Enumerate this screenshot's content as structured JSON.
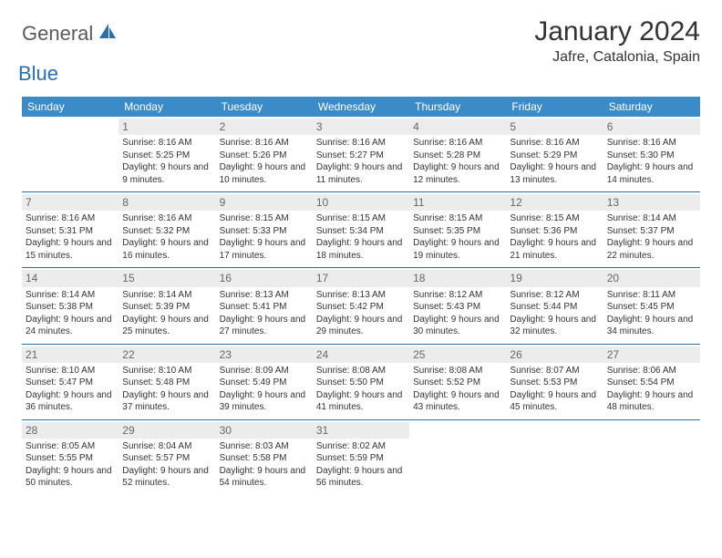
{
  "logo": {
    "general": "General",
    "blue": "Blue"
  },
  "title": "January 2024",
  "subtitle": "Jafre, Catalonia, Spain",
  "colors": {
    "header_bg": "#3b8bc9",
    "header_text": "#ffffff",
    "row_border": "#2b6fb0",
    "daynum_bg": "#ececec",
    "daynum_text": "#666666",
    "body_text": "#333333",
    "logo_gray": "#5a5a5a",
    "logo_blue": "#2b6fb0"
  },
  "day_headers": [
    "Sunday",
    "Monday",
    "Tuesday",
    "Wednesday",
    "Thursday",
    "Friday",
    "Saturday"
  ],
  "weeks": [
    [
      {
        "num": "",
        "sunrise": "",
        "sunset": "",
        "daylight": "",
        "empty": true
      },
      {
        "num": "1",
        "sunrise": "Sunrise: 8:16 AM",
        "sunset": "Sunset: 5:25 PM",
        "daylight": "Daylight: 9 hours and 9 minutes."
      },
      {
        "num": "2",
        "sunrise": "Sunrise: 8:16 AM",
        "sunset": "Sunset: 5:26 PM",
        "daylight": "Daylight: 9 hours and 10 minutes."
      },
      {
        "num": "3",
        "sunrise": "Sunrise: 8:16 AM",
        "sunset": "Sunset: 5:27 PM",
        "daylight": "Daylight: 9 hours and 11 minutes."
      },
      {
        "num": "4",
        "sunrise": "Sunrise: 8:16 AM",
        "sunset": "Sunset: 5:28 PM",
        "daylight": "Daylight: 9 hours and 12 minutes."
      },
      {
        "num": "5",
        "sunrise": "Sunrise: 8:16 AM",
        "sunset": "Sunset: 5:29 PM",
        "daylight": "Daylight: 9 hours and 13 minutes."
      },
      {
        "num": "6",
        "sunrise": "Sunrise: 8:16 AM",
        "sunset": "Sunset: 5:30 PM",
        "daylight": "Daylight: 9 hours and 14 minutes."
      }
    ],
    [
      {
        "num": "7",
        "sunrise": "Sunrise: 8:16 AM",
        "sunset": "Sunset: 5:31 PM",
        "daylight": "Daylight: 9 hours and 15 minutes."
      },
      {
        "num": "8",
        "sunrise": "Sunrise: 8:16 AM",
        "sunset": "Sunset: 5:32 PM",
        "daylight": "Daylight: 9 hours and 16 minutes."
      },
      {
        "num": "9",
        "sunrise": "Sunrise: 8:15 AM",
        "sunset": "Sunset: 5:33 PM",
        "daylight": "Daylight: 9 hours and 17 minutes."
      },
      {
        "num": "10",
        "sunrise": "Sunrise: 8:15 AM",
        "sunset": "Sunset: 5:34 PM",
        "daylight": "Daylight: 9 hours and 18 minutes."
      },
      {
        "num": "11",
        "sunrise": "Sunrise: 8:15 AM",
        "sunset": "Sunset: 5:35 PM",
        "daylight": "Daylight: 9 hours and 19 minutes."
      },
      {
        "num": "12",
        "sunrise": "Sunrise: 8:15 AM",
        "sunset": "Sunset: 5:36 PM",
        "daylight": "Daylight: 9 hours and 21 minutes."
      },
      {
        "num": "13",
        "sunrise": "Sunrise: 8:14 AM",
        "sunset": "Sunset: 5:37 PM",
        "daylight": "Daylight: 9 hours and 22 minutes."
      }
    ],
    [
      {
        "num": "14",
        "sunrise": "Sunrise: 8:14 AM",
        "sunset": "Sunset: 5:38 PM",
        "daylight": "Daylight: 9 hours and 24 minutes."
      },
      {
        "num": "15",
        "sunrise": "Sunrise: 8:14 AM",
        "sunset": "Sunset: 5:39 PM",
        "daylight": "Daylight: 9 hours and 25 minutes."
      },
      {
        "num": "16",
        "sunrise": "Sunrise: 8:13 AM",
        "sunset": "Sunset: 5:41 PM",
        "daylight": "Daylight: 9 hours and 27 minutes."
      },
      {
        "num": "17",
        "sunrise": "Sunrise: 8:13 AM",
        "sunset": "Sunset: 5:42 PM",
        "daylight": "Daylight: 9 hours and 29 minutes."
      },
      {
        "num": "18",
        "sunrise": "Sunrise: 8:12 AM",
        "sunset": "Sunset: 5:43 PM",
        "daylight": "Daylight: 9 hours and 30 minutes."
      },
      {
        "num": "19",
        "sunrise": "Sunrise: 8:12 AM",
        "sunset": "Sunset: 5:44 PM",
        "daylight": "Daylight: 9 hours and 32 minutes."
      },
      {
        "num": "20",
        "sunrise": "Sunrise: 8:11 AM",
        "sunset": "Sunset: 5:45 PM",
        "daylight": "Daylight: 9 hours and 34 minutes."
      }
    ],
    [
      {
        "num": "21",
        "sunrise": "Sunrise: 8:10 AM",
        "sunset": "Sunset: 5:47 PM",
        "daylight": "Daylight: 9 hours and 36 minutes."
      },
      {
        "num": "22",
        "sunrise": "Sunrise: 8:10 AM",
        "sunset": "Sunset: 5:48 PM",
        "daylight": "Daylight: 9 hours and 37 minutes."
      },
      {
        "num": "23",
        "sunrise": "Sunrise: 8:09 AM",
        "sunset": "Sunset: 5:49 PM",
        "daylight": "Daylight: 9 hours and 39 minutes."
      },
      {
        "num": "24",
        "sunrise": "Sunrise: 8:08 AM",
        "sunset": "Sunset: 5:50 PM",
        "daylight": "Daylight: 9 hours and 41 minutes."
      },
      {
        "num": "25",
        "sunrise": "Sunrise: 8:08 AM",
        "sunset": "Sunset: 5:52 PM",
        "daylight": "Daylight: 9 hours and 43 minutes."
      },
      {
        "num": "26",
        "sunrise": "Sunrise: 8:07 AM",
        "sunset": "Sunset: 5:53 PM",
        "daylight": "Daylight: 9 hours and 45 minutes."
      },
      {
        "num": "27",
        "sunrise": "Sunrise: 8:06 AM",
        "sunset": "Sunset: 5:54 PM",
        "daylight": "Daylight: 9 hours and 48 minutes."
      }
    ],
    [
      {
        "num": "28",
        "sunrise": "Sunrise: 8:05 AM",
        "sunset": "Sunset: 5:55 PM",
        "daylight": "Daylight: 9 hours and 50 minutes."
      },
      {
        "num": "29",
        "sunrise": "Sunrise: 8:04 AM",
        "sunset": "Sunset: 5:57 PM",
        "daylight": "Daylight: 9 hours and 52 minutes."
      },
      {
        "num": "30",
        "sunrise": "Sunrise: 8:03 AM",
        "sunset": "Sunset: 5:58 PM",
        "daylight": "Daylight: 9 hours and 54 minutes."
      },
      {
        "num": "31",
        "sunrise": "Sunrise: 8:02 AM",
        "sunset": "Sunset: 5:59 PM",
        "daylight": "Daylight: 9 hours and 56 minutes."
      },
      {
        "num": "",
        "sunrise": "",
        "sunset": "",
        "daylight": "",
        "empty": true
      },
      {
        "num": "",
        "sunrise": "",
        "sunset": "",
        "daylight": "",
        "empty": true
      },
      {
        "num": "",
        "sunrise": "",
        "sunset": "",
        "daylight": "",
        "empty": true
      }
    ]
  ]
}
